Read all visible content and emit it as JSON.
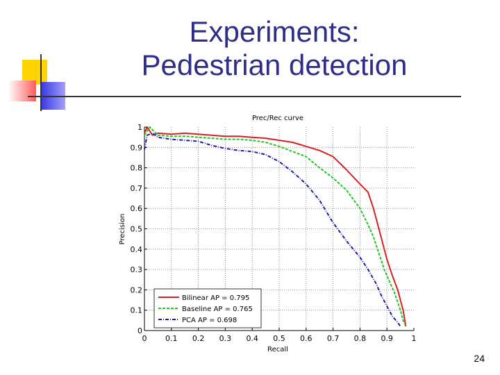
{
  "slide": {
    "title_line1": "Experiments:",
    "title_line2": "Pedestrian detection",
    "page_number": "24",
    "accent_colors": {
      "title": "#2e2e8a",
      "deco_yellow": "#ffd400",
      "deco_red": "#ff5a5a",
      "deco_blue": "#3a3ae0"
    }
  },
  "chart_data": {
    "type": "line",
    "title": "Prec/Rec curve",
    "xlabel": "Recall",
    "ylabel": "Precision",
    "xlim": [
      0,
      1
    ],
    "ylim": [
      0,
      1
    ],
    "xticks": [
      "0",
      "0.1",
      "0.2",
      "0.3",
      "0.4",
      "0.5",
      "0.6",
      "0.7",
      "0.8",
      "0.9",
      "1"
    ],
    "yticks": [
      "0",
      "0.1",
      "0.2",
      "0.3",
      "0.4",
      "0.5",
      "0.6",
      "0.7",
      "0.8",
      "0.9",
      "1"
    ],
    "grid": true,
    "legend_position": "bottom-left",
    "series": [
      {
        "name": "Bilinear AP = 0.795",
        "color": "#d62020",
        "dash": "solid",
        "points": [
          [
            0.0,
            0.97
          ],
          [
            0.01,
            1.0
          ],
          [
            0.03,
            0.96
          ],
          [
            0.05,
            0.97
          ],
          [
            0.1,
            0.965
          ],
          [
            0.15,
            0.97
          ],
          [
            0.2,
            0.965
          ],
          [
            0.25,
            0.96
          ],
          [
            0.3,
            0.955
          ],
          [
            0.35,
            0.955
          ],
          [
            0.4,
            0.95
          ],
          [
            0.45,
            0.945
          ],
          [
            0.5,
            0.935
          ],
          [
            0.55,
            0.925
          ],
          [
            0.6,
            0.905
          ],
          [
            0.65,
            0.885
          ],
          [
            0.7,
            0.855
          ],
          [
            0.75,
            0.79
          ],
          [
            0.8,
            0.72
          ],
          [
            0.83,
            0.68
          ],
          [
            0.85,
            0.6
          ],
          [
            0.87,
            0.5
          ],
          [
            0.89,
            0.4
          ],
          [
            0.9,
            0.35
          ],
          [
            0.92,
            0.27
          ],
          [
            0.94,
            0.2
          ],
          [
            0.95,
            0.15
          ],
          [
            0.96,
            0.1
          ],
          [
            0.97,
            0.02
          ]
        ]
      },
      {
        "name": "Baseline AP = 0.765",
        "color": "#22c422",
        "dash": "dashed",
        "points": [
          [
            0.0,
            0.96
          ],
          [
            0.02,
            1.0
          ],
          [
            0.05,
            0.96
          ],
          [
            0.1,
            0.955
          ],
          [
            0.15,
            0.955
          ],
          [
            0.2,
            0.95
          ],
          [
            0.25,
            0.945
          ],
          [
            0.3,
            0.94
          ],
          [
            0.35,
            0.94
          ],
          [
            0.4,
            0.935
          ],
          [
            0.45,
            0.925
          ],
          [
            0.5,
            0.905
          ],
          [
            0.55,
            0.88
          ],
          [
            0.6,
            0.855
          ],
          [
            0.65,
            0.8
          ],
          [
            0.7,
            0.75
          ],
          [
            0.75,
            0.69
          ],
          [
            0.8,
            0.6
          ],
          [
            0.83,
            0.52
          ],
          [
            0.85,
            0.46
          ],
          [
            0.87,
            0.38
          ],
          [
            0.89,
            0.3
          ],
          [
            0.91,
            0.24
          ],
          [
            0.93,
            0.18
          ],
          [
            0.95,
            0.1
          ],
          [
            0.96,
            0.05
          ],
          [
            0.97,
            0.02
          ]
        ]
      },
      {
        "name": "PCA AP = 0.698",
        "color": "#1a1aa8",
        "dash": "dashdot",
        "points": [
          [
            0.0,
            0.89
          ],
          [
            0.01,
            0.96
          ],
          [
            0.03,
            0.97
          ],
          [
            0.05,
            0.95
          ],
          [
            0.1,
            0.94
          ],
          [
            0.15,
            0.935
          ],
          [
            0.2,
            0.93
          ],
          [
            0.25,
            0.91
          ],
          [
            0.3,
            0.895
          ],
          [
            0.35,
            0.885
          ],
          [
            0.4,
            0.88
          ],
          [
            0.45,
            0.865
          ],
          [
            0.5,
            0.83
          ],
          [
            0.55,
            0.78
          ],
          [
            0.6,
            0.72
          ],
          [
            0.65,
            0.64
          ],
          [
            0.7,
            0.53
          ],
          [
            0.75,
            0.44
          ],
          [
            0.8,
            0.36
          ],
          [
            0.83,
            0.3
          ],
          [
            0.86,
            0.23
          ],
          [
            0.88,
            0.17
          ],
          [
            0.9,
            0.12
          ],
          [
            0.92,
            0.07
          ],
          [
            0.94,
            0.04
          ],
          [
            0.95,
            0.02
          ]
        ]
      }
    ]
  }
}
